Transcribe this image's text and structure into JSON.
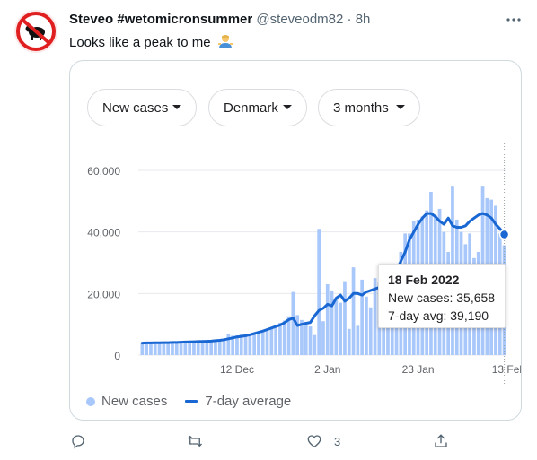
{
  "tweet": {
    "author_name": "Steveo #wetomicronsummer",
    "handle": "@steveodm82",
    "separator": "·",
    "time": "8h",
    "text": "Looks like a peak to me",
    "emoji_name": "person-shrugging-emoji",
    "avatar_icon": "no-smoking-style-prohibition-icon"
  },
  "dropdowns": {
    "metric": "New cases",
    "region": "Denmark",
    "range": "3 months"
  },
  "tooltip": {
    "date": "18 Feb 2022",
    "new_cases": "New cases: 35,658",
    "avg": "7-day avg: 39,190"
  },
  "legend": {
    "bars_label": "New cases",
    "line_label": "7-day average"
  },
  "actions": {
    "reply_icon": "reply-icon",
    "retweet_icon": "retweet-icon",
    "like_icon": "heart-icon",
    "like_count": "3",
    "share_icon": "share-icon"
  },
  "colors": {
    "bar": "#a8c7fa",
    "line": "#1967d2",
    "grid": "#e8eaed"
  },
  "chart_data": {
    "type": "bar",
    "title": "",
    "xlabel": "",
    "ylabel": "",
    "ylim": [
      0,
      65000
    ],
    "yticks": [
      "0",
      "20,000",
      "40,000",
      "60,000"
    ],
    "ytick_values": [
      0,
      20000,
      40000,
      60000
    ],
    "xtick_labels": [
      "12 Dec",
      "2 Jan",
      "23 Jan",
      "13 Feb"
    ],
    "xtick_indices": [
      22,
      43,
      64,
      85
    ],
    "grid": true,
    "legend_position": "bottom-left",
    "series": [
      {
        "name": "New cases",
        "type": "bar",
        "values": [
          3800,
          3900,
          3900,
          4000,
          4000,
          3900,
          4000,
          4100,
          4100,
          4200,
          4300,
          4400,
          4300,
          4500,
          4600,
          4700,
          4700,
          5000,
          4900,
          5200,
          7000,
          6300,
          6400,
          6800,
          6800,
          6500,
          7200,
          7700,
          7900,
          8300,
          8800,
          9200,
          10500,
          11200,
          12600,
          20500,
          13000,
          11400,
          10800,
          9300,
          6500,
          41000,
          11000,
          23000,
          21000,
          18500,
          17000,
          24000,
          8500,
          28500,
          9500,
          24500,
          19000,
          15500,
          25000,
          23500,
          25500,
          22500,
          27500,
          20000,
          33500,
          39500,
          39500,
          43500,
          44000,
          45000,
          47000,
          53000,
          45500,
          47500,
          40000,
          33500,
          55000,
          44000,
          40000,
          36000,
          39500,
          31500,
          33500,
          55000,
          51000,
          50500,
          48500,
          39500,
          35658
        ],
        "note": ""
      },
      {
        "name": "7-day average",
        "type": "line",
        "values": [
          3900,
          3950,
          3950,
          4000,
          4000,
          4050,
          4050,
          4100,
          4100,
          4200,
          4250,
          4300,
          4350,
          4400,
          4450,
          4500,
          4550,
          4700,
          4800,
          5000,
          5300,
          5600,
          5900,
          6100,
          6300,
          6600,
          7000,
          7400,
          7800,
          8300,
          8800,
          9300,
          9800,
          10500,
          11500,
          12000,
          9600,
          10000,
          10300,
          10600,
          12800,
          14500,
          15200,
          16500,
          16000,
          18500,
          19500,
          17500,
          18500,
          20000,
          20000,
          19500,
          20500,
          21000,
          21500,
          22000,
          23000,
          23500,
          25000,
          27500,
          30500,
          33500,
          37500,
          40000,
          42500,
          44500,
          46000,
          46000,
          45000,
          43500,
          42500,
          44500,
          42000,
          41500,
          41500,
          42000,
          43500,
          44500,
          45500,
          46000,
          45500,
          44500,
          42500,
          41000,
          39190
        ]
      }
    ]
  }
}
